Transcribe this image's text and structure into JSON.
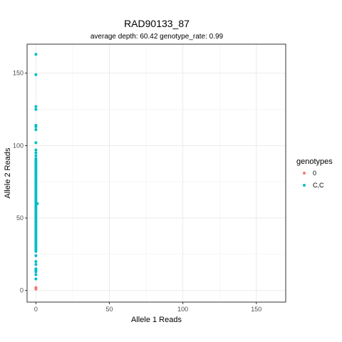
{
  "chart_data": {
    "type": "scatter",
    "title": "RAD90133_87",
    "subtitle": "average depth:  60.42  genotype_rate:  0.99",
    "xlabel": "Allele 1 Reads",
    "ylabel": "Allele 2 Reads",
    "xlim": [
      -6,
      170
    ],
    "ylim": [
      -8,
      170
    ],
    "x_ticks": [
      0,
      50,
      100,
      150
    ],
    "y_ticks": [
      0,
      50,
      100,
      150
    ],
    "grid": true,
    "legend": {
      "title": "genotypes",
      "position": "right"
    },
    "series": [
      {
        "name": "0",
        "color": "#F8766D",
        "points": [
          {
            "x": 0,
            "y": 1
          },
          {
            "x": 0,
            "y": 2
          }
        ]
      },
      {
        "name": "C,C",
        "color": "#00BFC4",
        "points": [
          {
            "x": 0,
            "y": 163
          },
          {
            "x": 0,
            "y": 149
          },
          {
            "x": 0,
            "y": 127
          },
          {
            "x": 0,
            "y": 125
          },
          {
            "x": 0,
            "y": 114
          },
          {
            "x": 0,
            "y": 113
          },
          {
            "x": 0,
            "y": 111
          },
          {
            "x": 0,
            "y": 102
          },
          {
            "x": 0,
            "y": 97
          },
          {
            "x": 0,
            "y": 95
          },
          {
            "x": 0,
            "y": 93
          },
          {
            "x": 0,
            "y": 91
          },
          {
            "x": 0,
            "y": 90
          },
          {
            "x": 0,
            "y": 89
          },
          {
            "x": 0,
            "y": 88
          },
          {
            "x": 0,
            "y": 87
          },
          {
            "x": 0,
            "y": 86
          },
          {
            "x": 0,
            "y": 85
          },
          {
            "x": 0,
            "y": 84
          },
          {
            "x": 0,
            "y": 83
          },
          {
            "x": 0,
            "y": 82
          },
          {
            "x": 0,
            "y": 81
          },
          {
            "x": 0,
            "y": 80
          },
          {
            "x": 0,
            "y": 79
          },
          {
            "x": 0,
            "y": 78
          },
          {
            "x": 0,
            "y": 77
          },
          {
            "x": 0,
            "y": 76
          },
          {
            "x": 0,
            "y": 75
          },
          {
            "x": 0,
            "y": 74
          },
          {
            "x": 0,
            "y": 73
          },
          {
            "x": 0,
            "y": 72
          },
          {
            "x": 0,
            "y": 71
          },
          {
            "x": 0,
            "y": 70
          },
          {
            "x": 0,
            "y": 69
          },
          {
            "x": 0,
            "y": 68
          },
          {
            "x": 0,
            "y": 67
          },
          {
            "x": 0,
            "y": 66
          },
          {
            "x": 0,
            "y": 65
          },
          {
            "x": 0,
            "y": 64
          },
          {
            "x": 0,
            "y": 63
          },
          {
            "x": 0,
            "y": 62
          },
          {
            "x": 0,
            "y": 61
          },
          {
            "x": 0,
            "y": 60
          },
          {
            "x": 0,
            "y": 59
          },
          {
            "x": 0,
            "y": 58
          },
          {
            "x": 0,
            "y": 57
          },
          {
            "x": 0,
            "y": 56
          },
          {
            "x": 0,
            "y": 55
          },
          {
            "x": 0,
            "y": 54
          },
          {
            "x": 0,
            "y": 53
          },
          {
            "x": 0,
            "y": 52
          },
          {
            "x": 0,
            "y": 51
          },
          {
            "x": 0,
            "y": 50
          },
          {
            "x": 0,
            "y": 49
          },
          {
            "x": 0,
            "y": 48
          },
          {
            "x": 0,
            "y": 47
          },
          {
            "x": 0,
            "y": 46
          },
          {
            "x": 0,
            "y": 45
          },
          {
            "x": 0,
            "y": 44
          },
          {
            "x": 0,
            "y": 43
          },
          {
            "x": 0,
            "y": 42
          },
          {
            "x": 0,
            "y": 41
          },
          {
            "x": 0,
            "y": 40
          },
          {
            "x": 0,
            "y": 39
          },
          {
            "x": 0,
            "y": 38
          },
          {
            "x": 0,
            "y": 37
          },
          {
            "x": 0,
            "y": 36
          },
          {
            "x": 0,
            "y": 35
          },
          {
            "x": 0,
            "y": 34
          },
          {
            "x": 0,
            "y": 33
          },
          {
            "x": 0,
            "y": 32
          },
          {
            "x": 0,
            "y": 31
          },
          {
            "x": 0,
            "y": 30
          },
          {
            "x": 0,
            "y": 29
          },
          {
            "x": 0,
            "y": 28
          },
          {
            "x": 0,
            "y": 27
          },
          {
            "x": 0,
            "y": 24
          },
          {
            "x": 0,
            "y": 20
          },
          {
            "x": 0,
            "y": 18
          },
          {
            "x": 0,
            "y": 15
          },
          {
            "x": 0,
            "y": 14
          },
          {
            "x": 0,
            "y": 13
          },
          {
            "x": 0,
            "y": 11
          },
          {
            "x": 0,
            "y": 8
          },
          {
            "x": 1,
            "y": 60
          }
        ]
      }
    ]
  }
}
